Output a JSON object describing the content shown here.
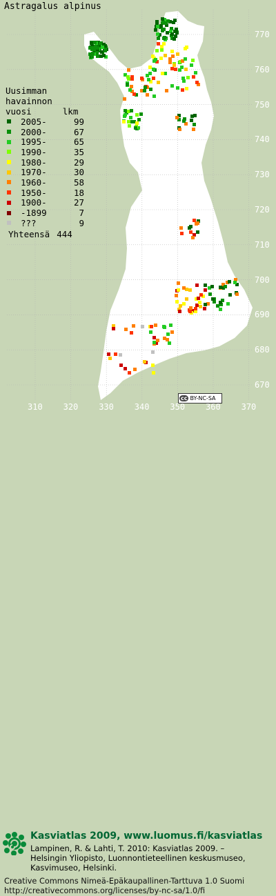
{
  "species": "Astragalus alpinus",
  "legend": {
    "heading": [
      "Uusimman",
      "havainnon",
      "vuosi      lkm"
    ],
    "items": [
      {
        "label": "2005-",
        "count": "99",
        "color": "#006400"
      },
      {
        "label": "2000-",
        "count": "67",
        "color": "#0a8f0a"
      },
      {
        "label": "1995-",
        "count": "65",
        "color": "#22cc22"
      },
      {
        "label": "1990-",
        "count": "35",
        "color": "#7fff00"
      },
      {
        "label": "1980-",
        "count": "29",
        "color": "#ffff00"
      },
      {
        "label": "1970-",
        "count": "30",
        "color": "#ffc800"
      },
      {
        "label": "1960-",
        "count": "58",
        "color": "#ff7f00"
      },
      {
        "label": "1950-",
        "count": "18",
        "color": "#ff3300"
      },
      {
        "label": "1900-",
        "count": "27",
        "color": "#cc0000"
      },
      {
        "label": "-1899",
        "count": "7",
        "color": "#800000"
      },
      {
        "label": "???",
        "count": "9",
        "color": "#c0c0c0"
      }
    ],
    "total_label": "Yhteensä",
    "total_count": "444"
  },
  "axes": {
    "right": [
      "770",
      "760",
      "750",
      "740",
      "730",
      "720",
      "710",
      "700",
      "690",
      "680",
      "670"
    ],
    "bottom": [
      "310",
      "320",
      "330",
      "340",
      "350",
      "360",
      "370"
    ]
  },
  "license_badge": {
    "cc": "cc",
    "text": "BY-NC-SA"
  },
  "footer": {
    "atlas_title": "Kasviatlas 2009, www.luomus.fi/kasviatlas",
    "citation": [
      "Lampinen, R. & Lahti, T. 2010: Kasviatlas 2009. –",
      "Helsingin Yliopisto, Luonnontieteellinen keskusmuseo,",
      "Kasvimuseo, Helsinki."
    ],
    "license": [
      "Creative Commons Nimeä-Epäkaupallinen-Tarttuva 1.0 Suomi",
      "http://creativecommons.org/licenses/by-nc-sa/1.0/fi"
    ]
  },
  "colors": {
    "background": "#c8d6b6",
    "land": "#ffffff",
    "grid": "#b4b4b4",
    "title_green": "#006633"
  }
}
